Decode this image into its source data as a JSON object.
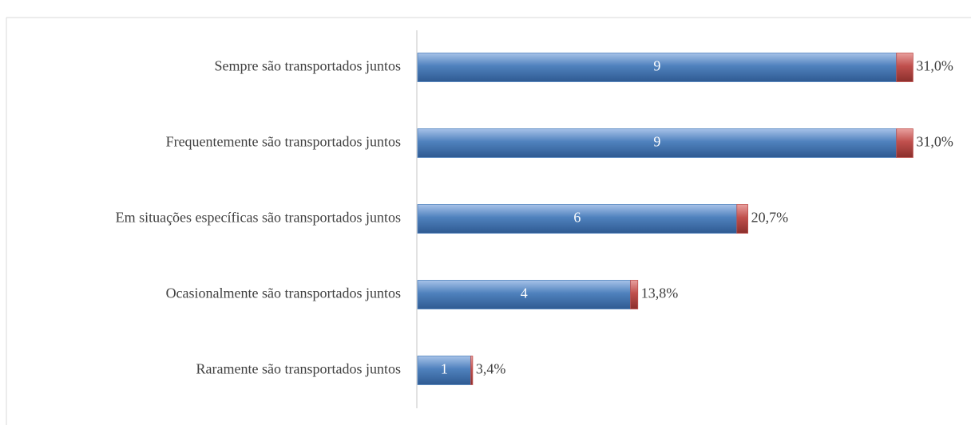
{
  "chart_data": {
    "type": "stacked-bar-horizontal",
    "categories": [
      "Sempre são transportados juntos",
      "Frequentemente são transportados juntos",
      "Em situações específicas são transportados juntos",
      "Ocasionalmente são transportados juntos",
      "Raramente são transportados juntos"
    ],
    "series": [
      {
        "color": "#4f81bd",
        "values": [
          9,
          9,
          6,
          4,
          1
        ]
      },
      {
        "color": "#c0504d",
        "values": [
          0.31,
          0.31,
          0.207,
          0.138,
          0.034
        ],
        "value_labels": [
          "31,0%",
          "31,0%",
          "20,7%",
          "13,8%",
          "3,4%"
        ]
      }
    ],
    "xlim": [
      0,
      10.4
    ]
  }
}
